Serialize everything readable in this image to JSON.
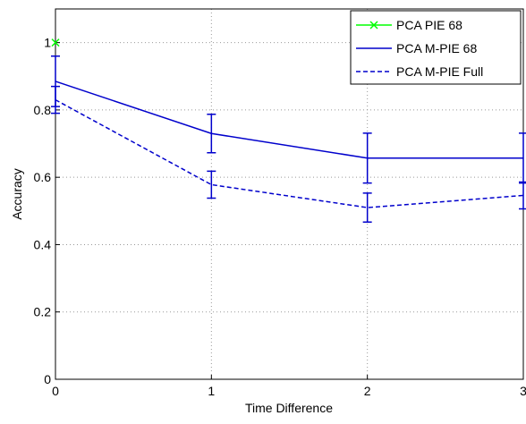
{
  "chart_data": {
    "type": "line",
    "xlabel": "Time Difference",
    "ylabel": "Accuracy",
    "xlim": [
      0,
      3
    ],
    "ylim": [
      0,
      1.1
    ],
    "xticks": [
      0,
      1,
      2,
      3
    ],
    "yticks": [
      0,
      0.2,
      0.4,
      0.6,
      0.8,
      1
    ],
    "grid": true,
    "legend_location": "northeast",
    "series": [
      {
        "name": "PCA PIE 68",
        "color": "#00ff00",
        "linestyle": "solid",
        "marker": "x",
        "x": [
          0
        ],
        "values": [
          1
        ]
      },
      {
        "name": "PCA M-PIE 68",
        "color": "#0000cc",
        "linestyle": "solid",
        "x": [
          0,
          1,
          2,
          3
        ],
        "values": [
          0.885,
          0.73,
          0.657,
          0.657
        ],
        "errors": [
          0.075,
          0.057,
          0.074,
          0.074
        ]
      },
      {
        "name": "PCA M-PIE Full",
        "color": "#0000cc",
        "linestyle": "dashed",
        "x": [
          0,
          1,
          2,
          3
        ],
        "values": [
          0.83,
          0.578,
          0.51,
          0.546
        ],
        "errors": [
          0.04,
          0.04,
          0.043,
          0.04
        ]
      }
    ]
  }
}
